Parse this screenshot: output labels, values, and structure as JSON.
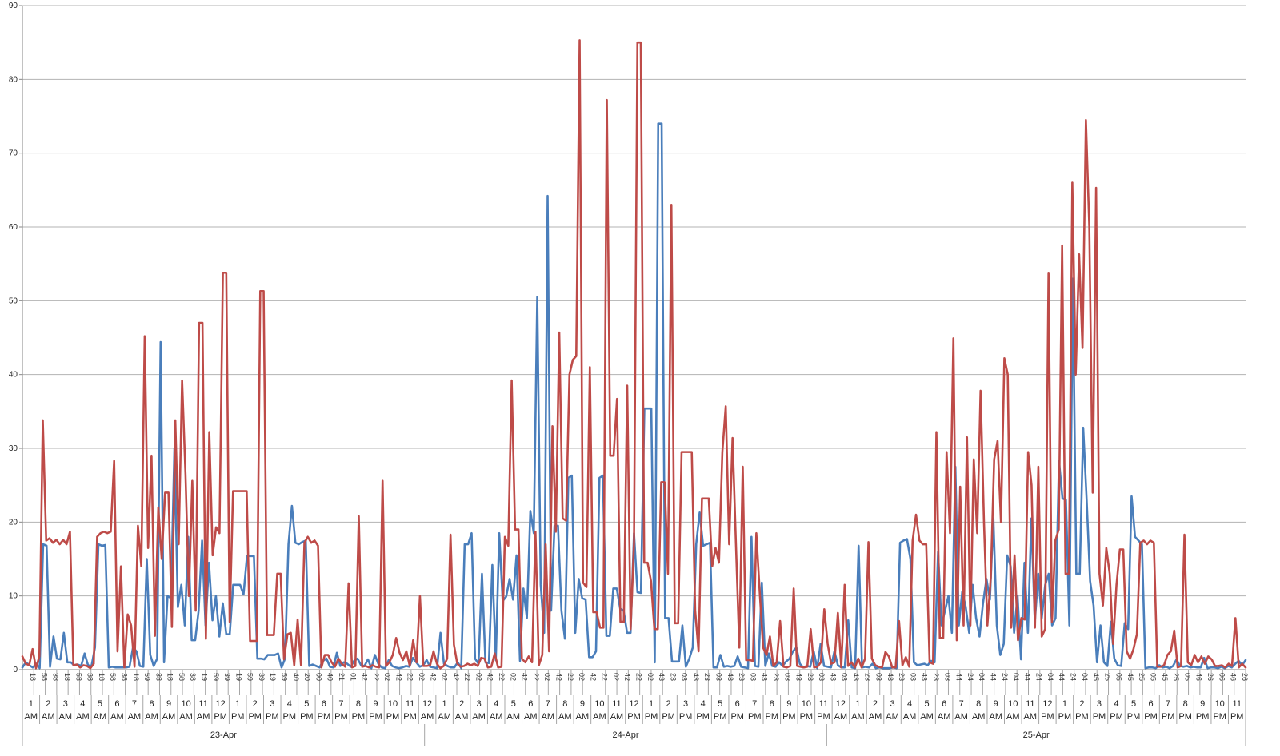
{
  "chart_data": {
    "type": "line",
    "title": "",
    "xlabel": "",
    "ylabel": "",
    "ylim": [
      0,
      90
    ],
    "y_ticks": [
      0,
      10,
      20,
      30,
      40,
      50,
      60,
      70,
      80,
      90
    ],
    "grid": true,
    "legend": "none",
    "days": [
      "23-Apr",
      "24-Apr",
      "25-Apr"
    ],
    "day_hours": [
      24,
      24,
      25
    ],
    "hour_labels": [
      [
        "1",
        "AM"
      ],
      [
        "2",
        "AM"
      ],
      [
        "3",
        "AM"
      ],
      [
        "4",
        "AM"
      ],
      [
        "5",
        "AM"
      ],
      [
        "6",
        "AM"
      ],
      [
        "7",
        "AM"
      ],
      [
        "8",
        "AM"
      ],
      [
        "9",
        "AM"
      ],
      [
        "10",
        "AM"
      ],
      [
        "11",
        "AM"
      ],
      [
        "12",
        "PM"
      ],
      [
        "1",
        "PM"
      ],
      [
        "2",
        "PM"
      ],
      [
        "3",
        "PM"
      ],
      [
        "4",
        "PM"
      ],
      [
        "5",
        "PM"
      ],
      [
        "6",
        "PM"
      ],
      [
        "7",
        "PM"
      ],
      [
        "8",
        "PM"
      ],
      [
        "9",
        "PM"
      ],
      [
        "10",
        "PM"
      ],
      [
        "11",
        "PM"
      ],
      [
        "12",
        "AM"
      ],
      [
        "1",
        "AM"
      ],
      [
        "2",
        "AM"
      ],
      [
        "3",
        "AM"
      ],
      [
        "4",
        "AM"
      ],
      [
        "5",
        "AM"
      ],
      [
        "6",
        "AM"
      ],
      [
        "7",
        "AM"
      ],
      [
        "8",
        "AM"
      ],
      [
        "9",
        "AM"
      ],
      [
        "10",
        "AM"
      ],
      [
        "11",
        "AM"
      ],
      [
        "12",
        "PM"
      ],
      [
        "1",
        "PM"
      ],
      [
        "2",
        "PM"
      ],
      [
        "3",
        "PM"
      ],
      [
        "4",
        "PM"
      ],
      [
        "5",
        "PM"
      ],
      [
        "6",
        "PM"
      ],
      [
        "7",
        "PM"
      ],
      [
        "8",
        "PM"
      ],
      [
        "9",
        "PM"
      ],
      [
        "10",
        "PM"
      ],
      [
        "11",
        "PM"
      ],
      [
        "12",
        "AM"
      ],
      [
        "1",
        "AM"
      ],
      [
        "2",
        "AM"
      ],
      [
        "3",
        "AM"
      ],
      [
        "4",
        "AM"
      ],
      [
        "5",
        "AM"
      ],
      [
        "6",
        "AM"
      ],
      [
        "7",
        "AM"
      ],
      [
        "8",
        "AM"
      ],
      [
        "9",
        "AM"
      ],
      [
        "10",
        "AM"
      ],
      [
        "11",
        "AM"
      ],
      [
        "12",
        "PM"
      ],
      [
        "1",
        "PM"
      ],
      [
        "2",
        "PM"
      ],
      [
        "3",
        "PM"
      ],
      [
        "4",
        "PM"
      ],
      [
        "5",
        "PM"
      ],
      [
        "6",
        "PM"
      ],
      [
        "7",
        "PM"
      ],
      [
        "8",
        "PM"
      ],
      [
        "9",
        "PM"
      ],
      [
        "10",
        "PM"
      ],
      [
        "11",
        "PM"
      ]
    ],
    "minute_ticks": [
      "18",
      "58",
      "38",
      "18",
      "58",
      "38",
      "18",
      "58",
      "38",
      "18",
      "59",
      "38",
      "18",
      "58",
      "38",
      "19",
      "59",
      "39",
      "19",
      "59",
      "39",
      "19",
      "59",
      "40",
      "20",
      "00",
      "40",
      "21",
      "01",
      "42",
      "22",
      "02",
      "42",
      "22",
      "02",
      "42",
      "02",
      "42",
      "22",
      "02",
      "42",
      "22",
      "02",
      "42",
      "22",
      "02",
      "42",
      "22",
      "02",
      "42",
      "22",
      "02",
      "42",
      "22",
      "02",
      "43",
      "23",
      "03",
      "43",
      "23",
      "03",
      "43",
      "23",
      "03",
      "43",
      "23",
      "03",
      "43",
      "23",
      "03",
      "43",
      "03",
      "43",
      "23",
      "03",
      "43",
      "23",
      "03",
      "43",
      "23",
      "03",
      "44",
      "24",
      "04",
      "44",
      "24",
      "04",
      "44",
      "24",
      "04",
      "44",
      "24",
      "04",
      "45",
      "25",
      "05",
      "45",
      "25",
      "05",
      "45",
      "25",
      "05",
      "46",
      "26",
      "06",
      "46",
      "26"
    ],
    "series": [
      {
        "color": "#4a7ebb",
        "values": [
          0.3,
          1.0,
          0.6,
          0.3,
          0.8,
          0.2,
          17.0,
          16.8,
          0.4,
          4.5,
          1.5,
          1.4,
          5.0,
          1.0,
          1.0,
          0.6,
          0.7,
          0.5,
          2.2,
          0.6,
          0.5,
          3.0,
          17.0,
          16.8,
          16.9,
          0.3,
          0.4,
          0.3,
          0.3,
          0.3,
          0.3,
          0.4,
          3.0,
          2.5,
          0.5,
          0.4,
          15.0,
          2.0,
          0.5,
          1.5,
          44.4,
          1.0,
          10.0,
          9.7,
          30.0,
          8.5,
          11.5,
          6.0,
          18.0,
          4.0,
          4.0,
          8.0,
          17.5,
          6.0,
          14.5,
          6.7,
          10.0,
          4.5,
          9.0,
          4.8,
          4.8,
          11.5,
          11.5,
          11.5,
          10.2,
          15.4,
          15.4,
          15.4,
          1.5,
          1.5,
          1.4,
          2.0,
          2.0,
          2.0,
          2.2,
          0.3,
          1.5,
          17.0,
          22.2,
          17.2,
          17.0,
          17.3,
          17.5,
          0.5,
          0.7,
          0.5,
          0.3,
          1.2,
          1.5,
          0.4,
          0.3,
          2.3,
          0.5,
          1.0,
          0.8,
          0.4,
          1.2,
          1.5,
          0.6,
          0.5,
          1.4,
          0.2,
          2.0,
          0.8,
          0.3,
          0.2,
          1.3,
          0.5,
          0.3,
          0.2,
          0.3,
          0.5,
          0.4,
          1.6,
          1.0,
          0.4,
          0.6,
          1.3,
          0.4,
          0.3,
          0.2,
          5.0,
          0.8,
          0.5,
          0.3,
          0.3,
          1.0,
          0.2,
          17.0,
          17.0,
          18.5,
          1.5,
          0.8,
          13.0,
          1.0,
          0.9,
          14.2,
          1.3,
          18.5,
          9.3,
          9.9,
          12.3,
          9.5,
          15.5,
          1.2,
          11.0,
          7.0,
          21.5,
          18.5,
          50.5,
          11.5,
          5.0,
          64.2,
          8.0,
          19.5,
          19.5,
          8.0,
          4.2,
          26.0,
          26.3,
          5.0,
          12.3,
          9.7,
          9.5,
          1.7,
          1.7,
          2.5,
          26.0,
          26.3,
          4.6,
          4.6,
          11.0,
          11.0,
          8.3,
          8.0,
          5.0,
          5.0,
          18.5,
          10.5,
          10.4,
          35.4,
          35.4,
          35.4,
          1.0,
          74.0,
          74.0,
          7.0,
          7.0,
          1.1,
          1.1,
          1.1,
          6.0,
          0.4,
          1.5,
          3.0,
          17.0,
          21.3,
          16.8,
          17.0,
          17.2,
          0.3,
          0.3,
          2.0,
          0.4,
          0.5,
          0.4,
          0.5,
          1.8,
          0.4,
          0.3,
          0.2,
          18.0,
          0.5,
          0.4,
          11.8,
          0.5,
          2.2,
          0.5,
          0.4,
          1.0,
          0.5,
          1.1,
          1.5,
          2.5,
          3.0,
          0.8,
          0.3,
          0.5,
          0.4,
          2.5,
          0.2,
          3.5,
          0.5,
          0.4,
          0.3,
          2.5,
          0.6,
          0.3,
          0.3,
          6.7,
          0.3,
          0.2,
          16.8,
          0.3,
          0.4,
          0.3,
          0.8,
          0.2,
          0.3,
          0.2,
          0.2,
          0.2,
          0.3,
          0.2,
          17.2,
          17.5,
          17.7,
          15.0,
          1.0,
          0.6,
          0.7,
          0.8,
          0.6,
          1.2,
          1.0,
          16.0,
          6.0,
          8.0,
          10.0,
          5.0,
          27.5,
          6.0,
          10.6,
          8.5,
          5.0,
          11.5,
          7.0,
          4.5,
          9.0,
          12.3,
          9.5,
          20.5,
          6.0,
          2.0,
          3.5,
          15.5,
          14.0,
          5.0,
          10.0,
          1.4,
          14.5,
          5.0,
          20.5,
          6.5,
          13.0,
          7.0,
          11.5,
          13.0,
          6.0,
          7.0,
          28.3,
          23.2,
          23.0,
          6.0,
          53.0,
          13.0,
          13.0,
          32.8,
          23.0,
          12.0,
          8.7,
          1.0,
          6.0,
          1.0,
          0.5,
          6.5,
          1.5,
          0.6,
          0.5,
          6.3,
          5.5,
          23.5,
          18.0,
          17.5,
          17.0,
          0.2,
          0.3,
          0.3,
          0.2,
          0.6,
          0.3,
          0.4,
          0.2,
          0.5,
          1.4,
          0.5,
          0.4,
          0.5,
          0.3,
          0.4,
          0.3,
          0.3,
          1.6,
          0.2,
          0.3,
          0.3,
          0.2,
          0.4,
          0.2,
          0.5,
          0.3,
          0.8,
          1.2,
          0.6,
          1.3
        ]
      },
      {
        "color": "#be4b48",
        "values": [
          1.8,
          0.8,
          0.6,
          2.8,
          0.2,
          1.8,
          33.8,
          17.5,
          17.8,
          17.2,
          17.6,
          17.0,
          17.6,
          17.0,
          18.7,
          0.6,
          0.7,
          0.3,
          0.6,
          0.5,
          0.2,
          0.8,
          18.0,
          18.5,
          18.7,
          18.5,
          18.7,
          28.3,
          2.5,
          14.0,
          0.3,
          7.5,
          6.0,
          0.4,
          19.5,
          14.0,
          45.2,
          16.5,
          29.0,
          4.6,
          22.0,
          15.0,
          24.0,
          24.0,
          5.8,
          33.8,
          17.0,
          39.2,
          26.5,
          10.0,
          25.6,
          8.0,
          47.0,
          47.0,
          4.2,
          32.2,
          15.5,
          19.3,
          18.5,
          53.8,
          53.8,
          6.5,
          24.2,
          24.2,
          24.2,
          24.2,
          24.2,
          3.9,
          3.9,
          3.9,
          51.3,
          51.3,
          4.7,
          4.7,
          4.7,
          13.0,
          13.0,
          1.4,
          4.8,
          5.0,
          0.6,
          6.8,
          0.6,
          17.2,
          18.0,
          17.2,
          17.5,
          16.8,
          0.3,
          2.0,
          2.0,
          1.0,
          0.4,
          1.5,
          0.8,
          0.4,
          11.7,
          0.3,
          0.5,
          20.8,
          0.4,
          0.5,
          0.3,
          0.6,
          0.4,
          0.3,
          25.6,
          0.5,
          1.0,
          2.0,
          4.3,
          2.3,
          1.3,
          2.5,
          0.5,
          4.0,
          1.0,
          10.0,
          0.5,
          0.5,
          0.6,
          2.5,
          0.8,
          0.2,
          0.5,
          1.5,
          18.3,
          3.4,
          0.8,
          0.4,
          0.5,
          0.8,
          0.6,
          0.8,
          0.5,
          1.6,
          1.5,
          0.3,
          0.4,
          2.2,
          0.3,
          0.4,
          18.0,
          16.8,
          39.2,
          19.0,
          19.0,
          1.5,
          1.0,
          1.8,
          1.0,
          18.7,
          0.6,
          2.0,
          17.0,
          2.5,
          33.0,
          18.7,
          45.7,
          20.5,
          20.2,
          40.0,
          42.0,
          42.5,
          85.3,
          11.8,
          11.2,
          41.0,
          7.8,
          7.8,
          5.7,
          5.7,
          77.2,
          29.0,
          29.0,
          36.7,
          6.5,
          6.5,
          38.5,
          5.5,
          17.2,
          85.0,
          85.0,
          14.5,
          14.5,
          12.0,
          5.5,
          5.5,
          25.4,
          25.4,
          13.0,
          63.0,
          6.3,
          6.3,
          29.5,
          29.5,
          29.5,
          29.5,
          8.0,
          2.5,
          23.2,
          23.2,
          23.2,
          14.0,
          16.5,
          14.5,
          29.5,
          35.7,
          17.0,
          31.4,
          17.0,
          3.0,
          27.5,
          1.3,
          1.3,
          1.2,
          18.5,
          10.5,
          3.0,
          2.0,
          4.5,
          0.5,
          1.0,
          6.6,
          0.4,
          0.3,
          0.5,
          11.0,
          0.5,
          0.4,
          0.3,
          0.4,
          5.5,
          0.3,
          0.4,
          1.0,
          8.2,
          3.5,
          0.8,
          1.0,
          7.7,
          0.3,
          11.5,
          0.5,
          1.0,
          0.3,
          1.5,
          0.3,
          1.5,
          17.3,
          1.5,
          0.6,
          0.4,
          0.3,
          2.4,
          1.8,
          0.3,
          0.3,
          6.6,
          0.6,
          1.7,
          0.4,
          17.5,
          21.0,
          17.5,
          17.0,
          17.0,
          1.0,
          0.8,
          32.2,
          4.3,
          4.3,
          29.5,
          18.5,
          44.9,
          4.0,
          24.8,
          6.0,
          31.5,
          6.0,
          28.5,
          18.5,
          37.8,
          20.0,
          6.0,
          12.5,
          28.5,
          31.0,
          20.0,
          42.2,
          40.0,
          5.7,
          15.5,
          4.0,
          7.0,
          6.8,
          29.5,
          25.0,
          5.7,
          27.5,
          4.5,
          5.5,
          53.8,
          6.5,
          17.5,
          19.0,
          57.5,
          13.0,
          13.0,
          66.0,
          40.0,
          56.3,
          43.6,
          74.5,
          60.0,
          24.0,
          65.3,
          13.0,
          8.7,
          16.5,
          13.0,
          3.5,
          11.5,
          16.3,
          16.3,
          2.5,
          1.5,
          2.8,
          4.8,
          17.2,
          17.5,
          17.0,
          17.5,
          17.2,
          0.4,
          0.4,
          0.6,
          2.0,
          2.5,
          5.3,
          0.3,
          0.5,
          18.3,
          1.0,
          0.6,
          2.0,
          1.0,
          1.8,
          0.8,
          1.8,
          1.4,
          0.5,
          0.5,
          0.6,
          0.3,
          0.8,
          0.5,
          7.0,
          0.3,
          0.8,
          0.3
        ]
      }
    ]
  }
}
